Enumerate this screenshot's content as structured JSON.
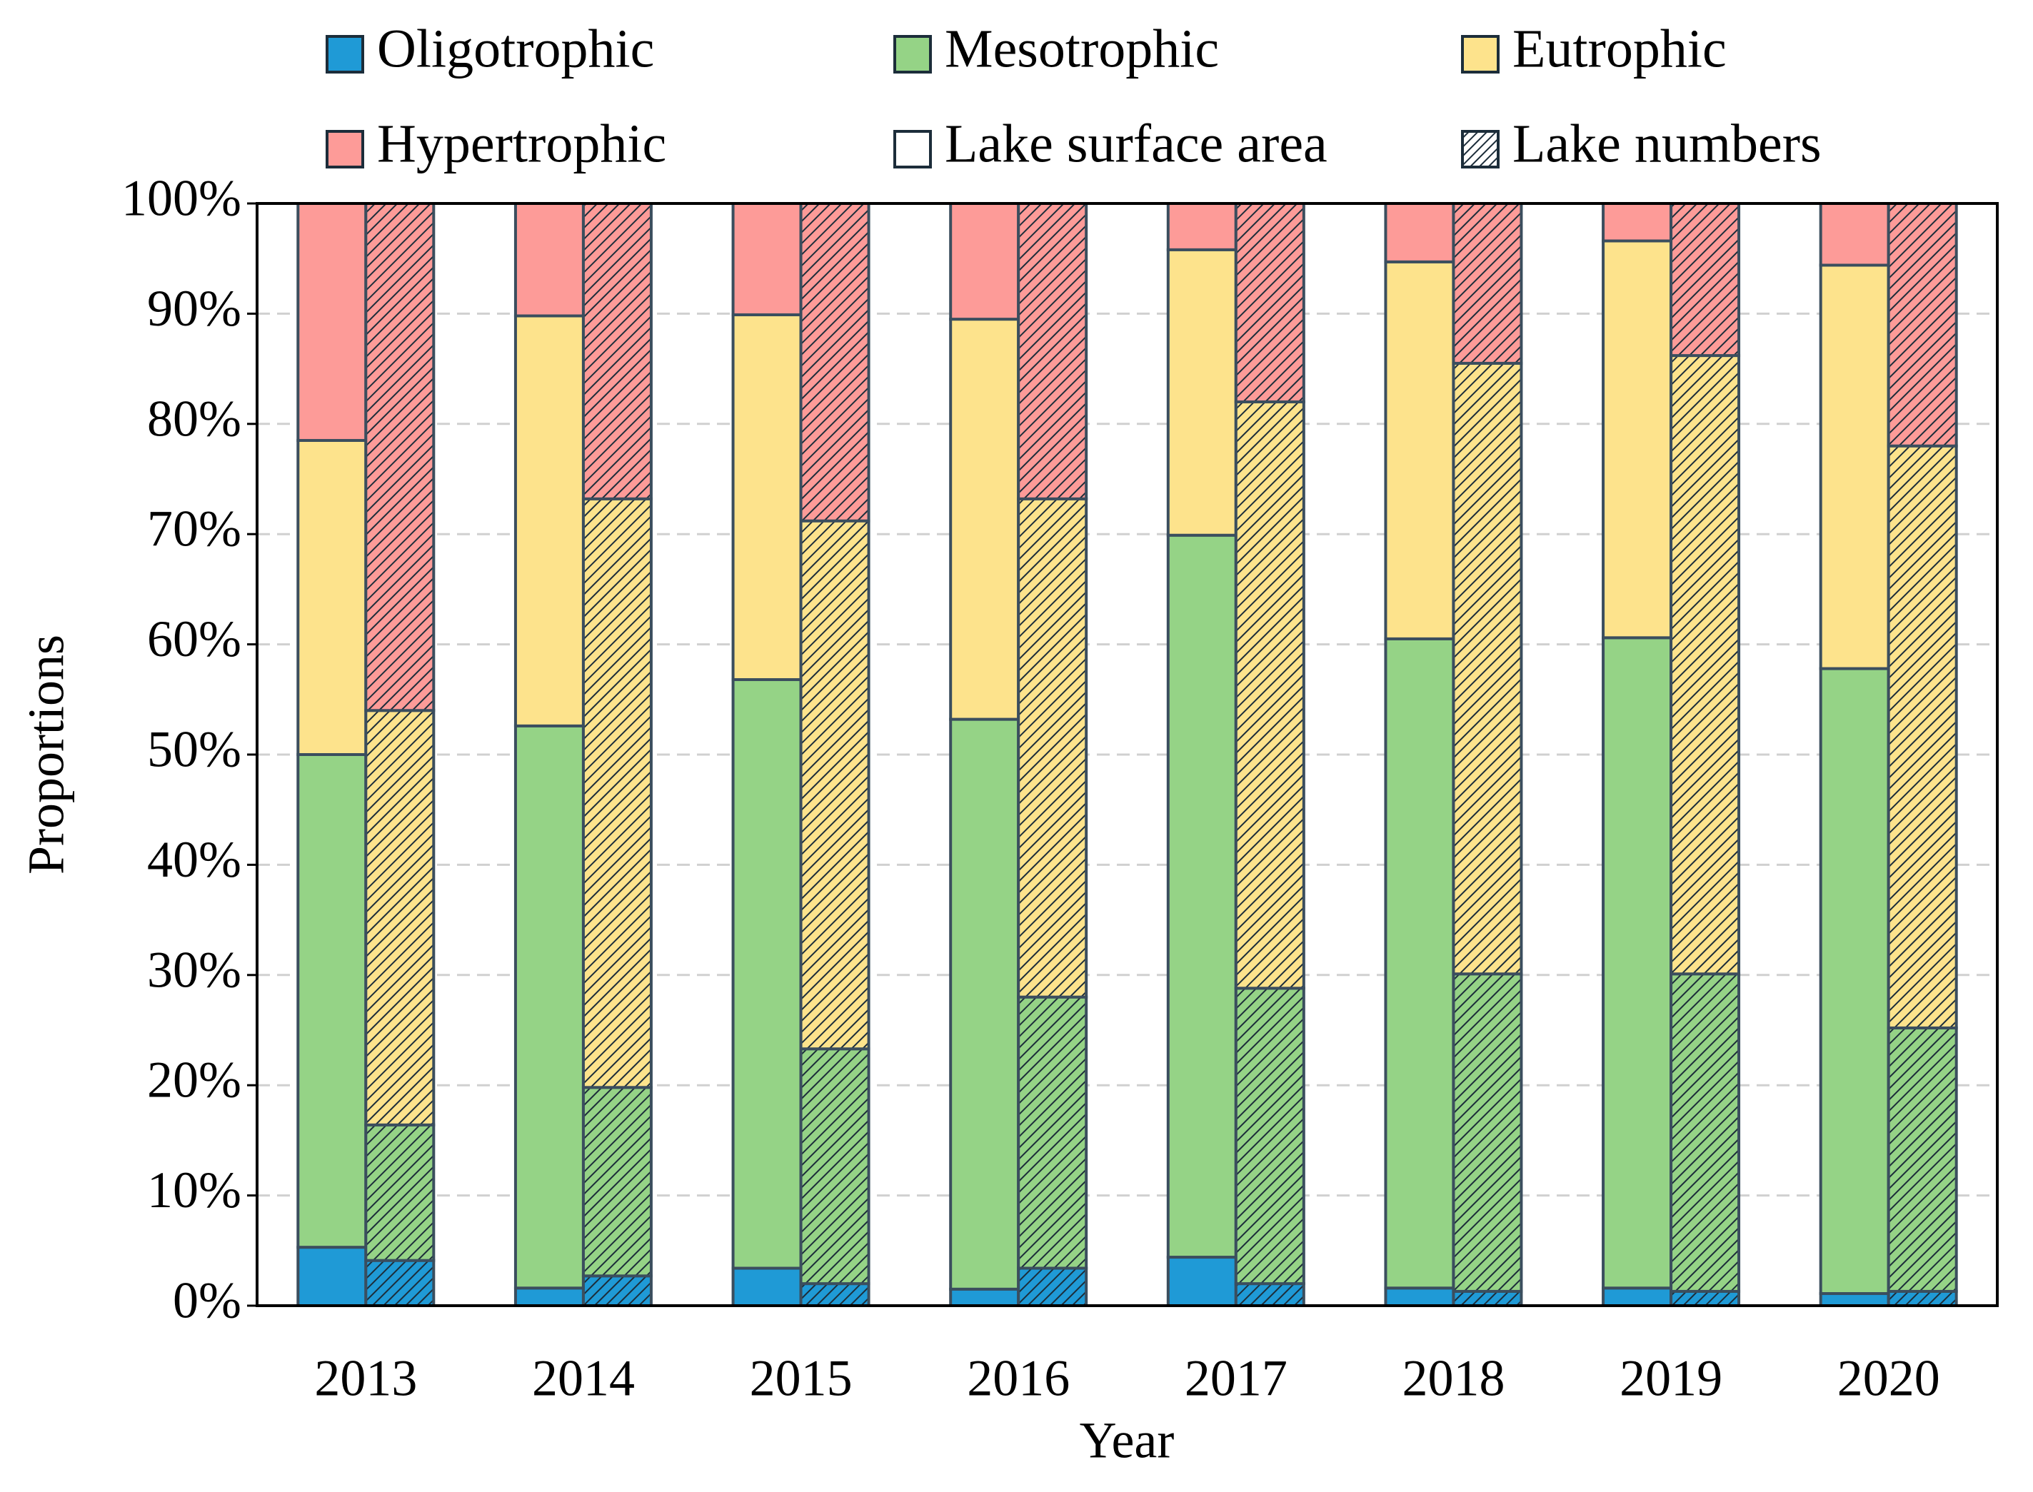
{
  "chart_data": {
    "type": "grouped_stacked_bar",
    "x_label": "Year",
    "y_label": "Proportions",
    "categories": [
      "2013",
      "2014",
      "2015",
      "2016",
      "2017",
      "2018",
      "2019",
      "2020"
    ],
    "ylim": [
      0,
      100
    ],
    "yticks": [
      {
        "value": 0,
        "label": "0%"
      },
      {
        "value": 10,
        "label": "10%"
      },
      {
        "value": 20,
        "label": "20%"
      },
      {
        "value": 30,
        "label": "30%"
      },
      {
        "value": 40,
        "label": "40%"
      },
      {
        "value": 50,
        "label": "50%"
      },
      {
        "value": 60,
        "label": "60%"
      },
      {
        "value": 70,
        "label": "70%"
      },
      {
        "value": 80,
        "label": "80%"
      },
      {
        "value": 90,
        "label": "90%"
      },
      {
        "value": 100,
        "label": "100%"
      }
    ],
    "grid": true,
    "series": [
      {
        "name": "Oligotrophic",
        "color": "#1f9ad6"
      },
      {
        "name": "Mesotrophic",
        "color": "#95d386"
      },
      {
        "name": "Eutrophic",
        "color": "#fde38c"
      },
      {
        "name": "Hypertrophic",
        "color": "#fd9b98"
      }
    ],
    "stacks": [
      {
        "name": "Lake surface area",
        "hatch": false,
        "series_values": [
          [
            5.3,
            1.6,
            3.4,
            1.5,
            4.4,
            1.6,
            1.6,
            1.1
          ],
          [
            44.7,
            51.0,
            53.4,
            51.7,
            65.5,
            58.9,
            59.0,
            56.7
          ],
          [
            28.5,
            37.2,
            33.1,
            36.3,
            25.9,
            34.2,
            36.0,
            36.6
          ],
          [
            21.5,
            10.2,
            10.1,
            10.5,
            4.2,
            5.3,
            3.4,
            5.6
          ]
        ]
      },
      {
        "name": "Lake numbers",
        "hatch": true,
        "series_values": [
          [
            4.1,
            2.7,
            2.0,
            3.4,
            2.0,
            1.3,
            1.3,
            1.3
          ],
          [
            12.3,
            17.1,
            21.3,
            24.6,
            26.8,
            28.8,
            28.8,
            23.9
          ],
          [
            37.6,
            53.4,
            47.9,
            45.2,
            53.2,
            55.4,
            56.1,
            52.8
          ],
          [
            46.0,
            26.8,
            28.8,
            26.8,
            18.0,
            14.5,
            13.8,
            22.0
          ]
        ]
      }
    ]
  }
}
